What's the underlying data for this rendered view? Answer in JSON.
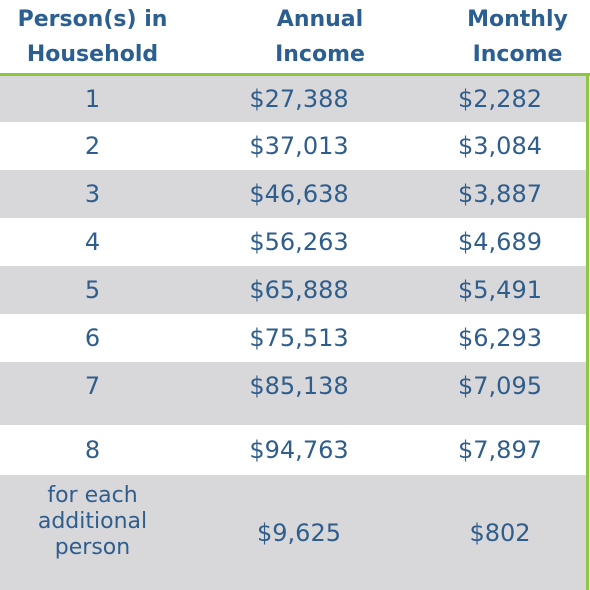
{
  "table": {
    "header": [
      "Person(s) in Household",
      "Annual Income",
      "Monthly Income"
    ],
    "rows": [
      [
        "1",
        "$27,388",
        "$2,282"
      ],
      [
        "2",
        "$37,013",
        "$3,084"
      ],
      [
        "3",
        "$46,638",
        "$3,887"
      ],
      [
        "4",
        "$56,263",
        "$4,689"
      ],
      [
        "5",
        "$65,888",
        "$5,491"
      ],
      [
        "6",
        "$75,513",
        "$6,293"
      ],
      [
        "7",
        "$85,138",
        "$7,095"
      ],
      [
        "8",
        "$94,763",
        "$7,897"
      ],
      [
        "for each additional person",
        "$9,625",
        "$802"
      ]
    ]
  }
}
